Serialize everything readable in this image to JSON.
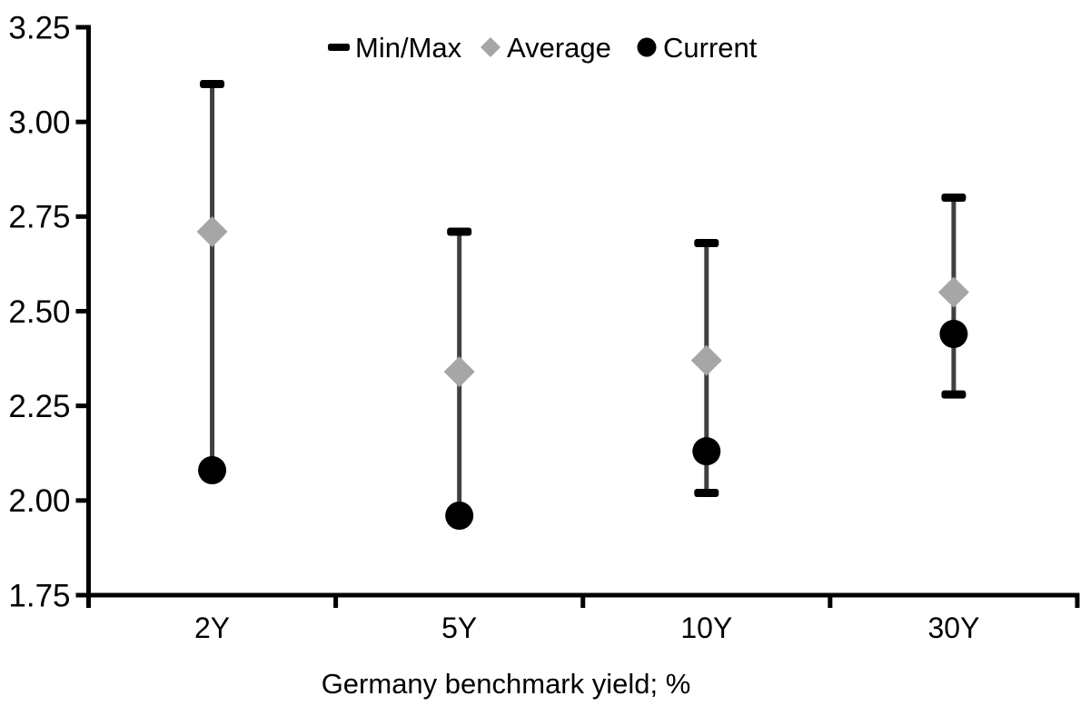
{
  "chart_data": {
    "type": "scatter",
    "subtype": "min-max-range-with-markers",
    "title": "",
    "xlabel": "Germany benchmark yield; %",
    "ylabel": "",
    "ylim": [
      1.75,
      3.25
    ],
    "ytick_step": 0.25,
    "ytick_labels": [
      "3.25",
      "3.00",
      "2.75",
      "2.50",
      "2.25",
      "2.00",
      "1.75"
    ],
    "grid": false,
    "legend_position": "top",
    "categories": [
      "2Y",
      "5Y",
      "10Y",
      "30Y"
    ],
    "series": [
      {
        "name": "Max",
        "values": [
          3.1,
          2.71,
          2.68,
          2.8
        ]
      },
      {
        "name": "Min",
        "values": [
          2.08,
          1.96,
          2.02,
          2.28
        ]
      },
      {
        "name": "Average",
        "values": [
          2.71,
          2.34,
          2.37,
          2.55
        ]
      },
      {
        "name": "Current",
        "values": [
          2.08,
          1.96,
          2.13,
          2.44
        ]
      }
    ],
    "legend": [
      {
        "label": "Min/Max",
        "marker": "dash",
        "color": "#000000"
      },
      {
        "label": "Average",
        "marker": "diamond",
        "color": "#a6a6a6"
      },
      {
        "label": "Current",
        "marker": "circle",
        "color": "#000000"
      }
    ],
    "colors": {
      "axis": "#000000",
      "range_line": "#404040",
      "cap": "#000000",
      "average_marker": "#a6a6a6",
      "current_marker": "#000000",
      "text": "#000000",
      "background": "#ffffff"
    }
  }
}
